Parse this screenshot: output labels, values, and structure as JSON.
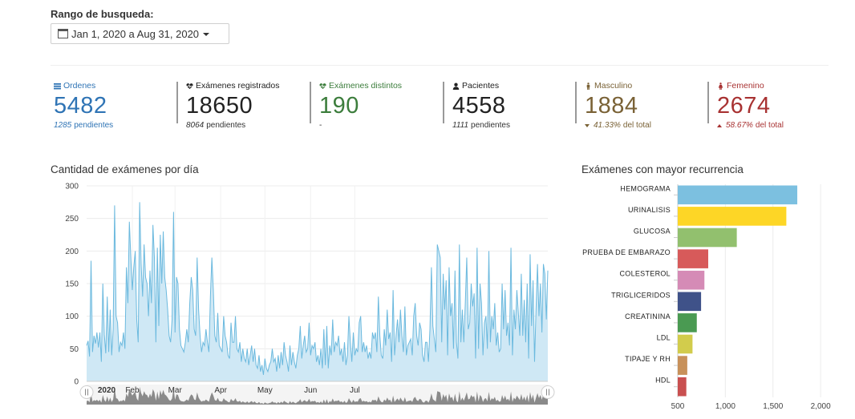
{
  "filter": {
    "label": "Rango de busqueda:",
    "range_text": "Jan 1, 2020 a Aug 31, 2020"
  },
  "stats": [
    {
      "name": "ordenes",
      "title": "Ordenes",
      "icon": "list-icon",
      "value": "5482",
      "sub_num": "1285",
      "sub_text": "pendientes",
      "color": "#2f74b5"
    },
    {
      "name": "examenes-registrados",
      "title": "Exámenes registrados",
      "icon": "heartbeat-icon",
      "value": "18650",
      "sub_num": "8064",
      "sub_text": "pendientes",
      "color": "#222222"
    },
    {
      "name": "examenes-distintos",
      "title": "Exámenes distintos",
      "icon": "heartbeat-icon",
      "value": "190",
      "sub_num": "",
      "sub_text": "-",
      "color": "#3c7d3c"
    },
    {
      "name": "pacientes",
      "title": "Pacientes",
      "icon": "user-icon",
      "value": "4558",
      "sub_num": "1111",
      "sub_text": "pendientes",
      "color": "#222222"
    },
    {
      "name": "masculino",
      "title": "Masculino",
      "icon": "male-icon",
      "value": "1884",
      "sub_num": "41.33%",
      "sub_text": "del total",
      "arrow": "down",
      "color": "#7a6236"
    },
    {
      "name": "femenino",
      "title": "Femenino",
      "icon": "female-icon",
      "value": "2674",
      "sub_num": "58.67%",
      "sub_text": "del total",
      "arrow": "up",
      "color": "#a83232"
    }
  ],
  "daily_chart": {
    "title": "Cantidad de exámenes por día",
    "chart_data": {
      "type": "area",
      "x_start": "2020-01-01",
      "y_ticks": [
        0,
        50,
        100,
        150,
        200,
        250,
        300
      ],
      "ylim": [
        0,
        300
      ],
      "x_month_labels": [
        "Feb",
        "Mar",
        "Apr",
        "May",
        "Jun",
        "Jul"
      ],
      "navigator_year_label": "2020",
      "navigator_labels": [
        "2020",
        "Feb",
        "Mar",
        "Apr",
        "May",
        "Jun",
        "Jul"
      ],
      "values": [
        55,
        62,
        38,
        185,
        45,
        70,
        58,
        75,
        52,
        75,
        30,
        150,
        72,
        43,
        130,
        45,
        110,
        40,
        80,
        270,
        100,
        90,
        45,
        60,
        55,
        75,
        50,
        175,
        120,
        245,
        190,
        140,
        175,
        200,
        95,
        60,
        275,
        180,
        130,
        210,
        160,
        150,
        100,
        170,
        120,
        240,
        190,
        60,
        205,
        85,
        225,
        150,
        230,
        160,
        140,
        110,
        70,
        60,
        95,
        260,
        75,
        160,
        150,
        80,
        55,
        50,
        45,
        60,
        80,
        60,
        120,
        160,
        140,
        80,
        70,
        190,
        110,
        70,
        45,
        60,
        55,
        80,
        60,
        45,
        130,
        190,
        140,
        70,
        60,
        105,
        55,
        50,
        45,
        100,
        70,
        60,
        40,
        35,
        90,
        60,
        60,
        100,
        50,
        45,
        60,
        30,
        50,
        35,
        30,
        50,
        25,
        40,
        55,
        30,
        50,
        25,
        20,
        40,
        15,
        25,
        10,
        35,
        20,
        15,
        25,
        30,
        50,
        30,
        35,
        15,
        40,
        20,
        45,
        25,
        60,
        40,
        30,
        15,
        55,
        25,
        45,
        30,
        20,
        40,
        50,
        85,
        35,
        55,
        70,
        45,
        50,
        90,
        40,
        55,
        50,
        60,
        30,
        40,
        25,
        50,
        20,
        80,
        25,
        85,
        20,
        55,
        40,
        95,
        45,
        60,
        55,
        70,
        40,
        50,
        30,
        60,
        25,
        40,
        100,
        60,
        30,
        75,
        40,
        50,
        45,
        90,
        100,
        45,
        60,
        45,
        55,
        35,
        45,
        35,
        75,
        65,
        75,
        45,
        130,
        70,
        40,
        35,
        80,
        55,
        110,
        65,
        75,
        30,
        140,
        40,
        70,
        95,
        60,
        110,
        70,
        45,
        115,
        40,
        55,
        60,
        65,
        40,
        100,
        120,
        70,
        55,
        90,
        80,
        40,
        30,
        60,
        60,
        30,
        80,
        175,
        85,
        65,
        45,
        210,
        200,
        190,
        60,
        165,
        110,
        155,
        40,
        175,
        100,
        120,
        50,
        170,
        60,
        35,
        210,
        60,
        110,
        60,
        120,
        190,
        80,
        90,
        150,
        115,
        135,
        35,
        205,
        50,
        150,
        120,
        40,
        90,
        100,
        50,
        200,
        60,
        100,
        80,
        120,
        55,
        75,
        45,
        50,
        150,
        80,
        140,
        70,
        90,
        55,
        205,
        40,
        110,
        80,
        140,
        105,
        70,
        165,
        70,
        125,
        60,
        150,
        35,
        195,
        85,
        155,
        30,
        110,
        180,
        100,
        150,
        75,
        180,
        165,
        95,
        170
      ]
    }
  },
  "top_chart": {
    "title": "Exámenes con mayor recurrencia",
    "chart_data": {
      "type": "bar",
      "orientation": "horizontal",
      "categories": [
        "HEMOGRAMA",
        "URINALISIS",
        "GLUCOSA",
        "PRUEBA DE EMBARAZO",
        "COLESTEROL",
        "TRIGLICERIDOS",
        "CREATININA",
        "LDL",
        "TIPAJE Y RH",
        "HDL"
      ],
      "values": [
        1755,
        1640,
        1120,
        820,
        780,
        745,
        700,
        655,
        600,
        590
      ],
      "colors": [
        "#7cc0e0",
        "#fdd626",
        "#92c06e",
        "#d75a5a",
        "#d58bb6",
        "#3f5289",
        "#4a9a52",
        "#d2cc4c",
        "#c8915a",
        "#c95050"
      ],
      "x_ticks": [
        500,
        1000,
        1500,
        2000
      ],
      "x_tick_labels": [
        "500",
        "1,000",
        "1,500",
        "2,000"
      ],
      "xlim": [
        500,
        2100
      ]
    }
  }
}
